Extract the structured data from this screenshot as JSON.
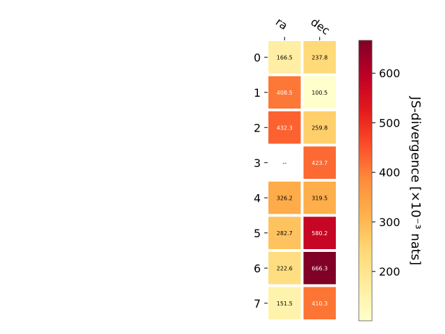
{
  "chart_data": {
    "type": "heatmap",
    "columns": [
      "ra",
      "dec"
    ],
    "rows": [
      "0",
      "1",
      "2",
      "3",
      "4",
      "5",
      "6",
      "7"
    ],
    "values": [
      [
        166.5,
        237.8
      ],
      [
        408.5,
        100.5
      ],
      [
        432.3,
        259.8
      ],
      [
        null,
        423.7
      ],
      [
        326.2,
        319.5
      ],
      [
        282.7,
        580.2
      ],
      [
        222.6,
        666.3
      ],
      [
        151.5,
        410.3
      ]
    ],
    "cell_text": [
      [
        "166.5",
        "237.8"
      ],
      [
        "408.5",
        "100.5"
      ],
      [
        "432.3",
        "259.8"
      ],
      [
        "--",
        "423.7"
      ],
      [
        "326.2",
        "319.5"
      ],
      [
        "282.7",
        "580.2"
      ],
      [
        "222.6",
        "666.3"
      ],
      [
        "151.5",
        "410.3"
      ]
    ],
    "colormap": "YlOrRd",
    "colorbar": {
      "label": "JS-divergence [×10⁻³ nats]",
      "vmin": 100.5,
      "vmax": 666.3,
      "ticks": [
        200,
        300,
        400,
        500,
        600
      ],
      "tick_labels": [
        "200",
        "300",
        "400",
        "500",
        "600"
      ]
    }
  }
}
